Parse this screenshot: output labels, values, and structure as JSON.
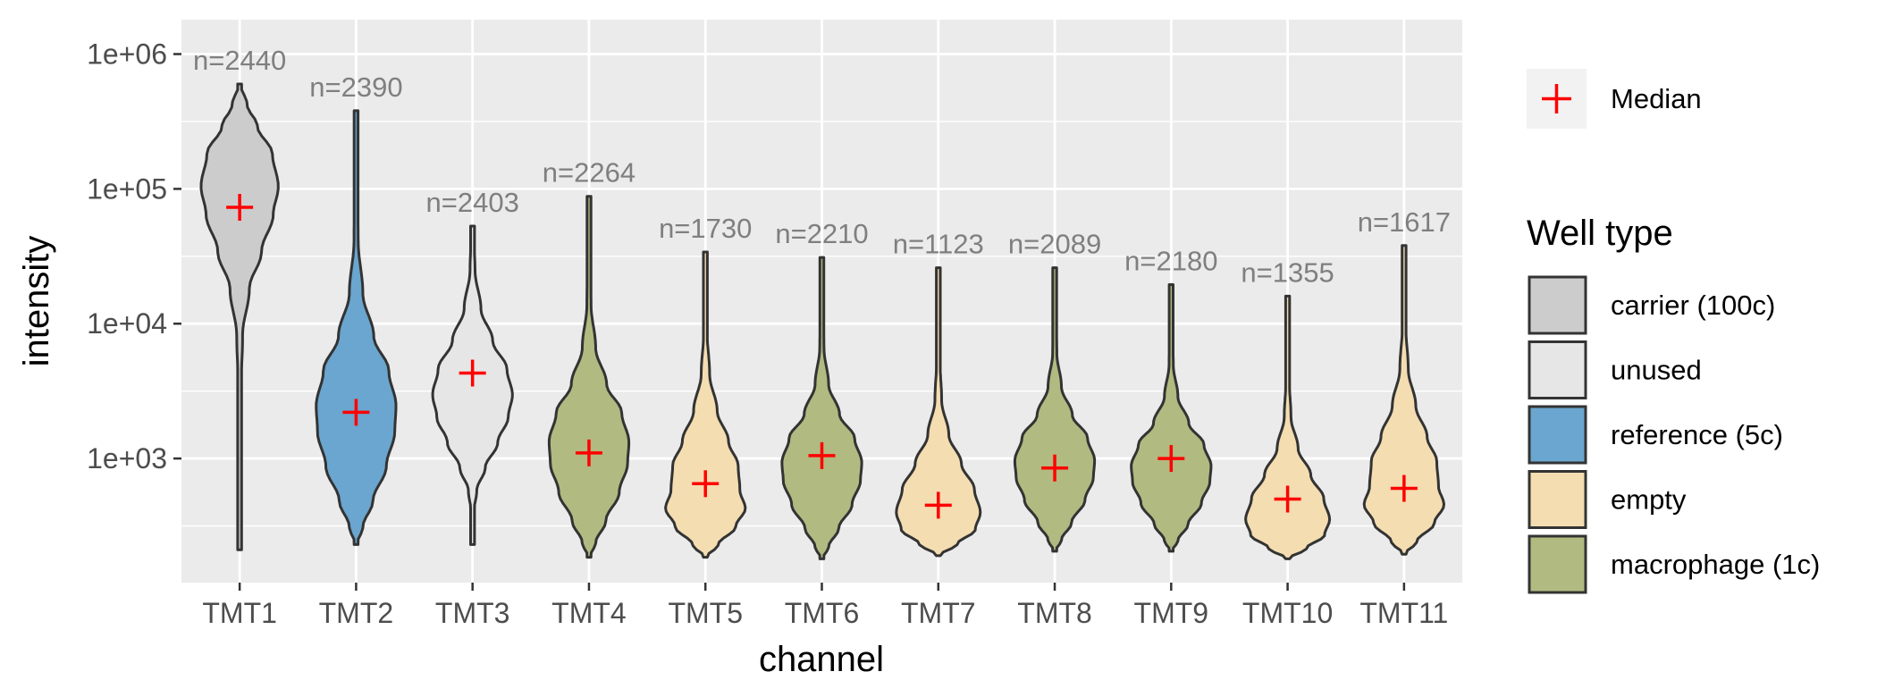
{
  "chart_data": {
    "type": "violin",
    "xlabel": "channel",
    "ylabel": "intensity",
    "y_scale": "log10",
    "ylim": [
      120,
      1800000
    ],
    "y_ticks": [
      {
        "value": 1000,
        "label": "1e+03"
      },
      {
        "value": 10000,
        "label": "1e+04"
      },
      {
        "value": 100000,
        "label": "1e+05"
      },
      {
        "value": 1000000,
        "label": "1e+06"
      }
    ],
    "grid": true,
    "legend_placement": "right",
    "median_legend": {
      "label": "Median",
      "color": "#ff0000"
    },
    "well_type_legend": {
      "title": "Well type",
      "entries": [
        {
          "label": "carrier (100c)",
          "color": "#cccccc"
        },
        {
          "label": "unused",
          "color": "#e6e6e6"
        },
        {
          "label": "reference (5c)",
          "color": "#6aa6cf"
        },
        {
          "label": "empty",
          "color": "#f4ddb1"
        },
        {
          "label": "macrophage (1c)",
          "color": "#b1ba80"
        }
      ]
    },
    "categories": [
      "TMT1",
      "TMT2",
      "TMT3",
      "TMT4",
      "TMT5",
      "TMT6",
      "TMT7",
      "TMT8",
      "TMT9",
      "TMT10",
      "TMT11"
    ],
    "series": [
      {
        "category": "TMT1",
        "well_type": "carrier (100c)",
        "n": "n=2440",
        "median": 73000,
        "min": 210,
        "max": 600000,
        "shape": "tall-top"
      },
      {
        "category": "TMT2",
        "well_type": "reference (5c)",
        "n": "n=2390",
        "median": 2200,
        "min": 230,
        "max": 380000,
        "shape": "mid"
      },
      {
        "category": "TMT3",
        "well_type": "unused",
        "n": "n=2403",
        "median": 4300,
        "min": 230,
        "max": 53000,
        "shape": "mid-tail"
      },
      {
        "category": "TMT4",
        "well_type": "macrophage (1c)",
        "n": "n=2264",
        "median": 1100,
        "min": 185,
        "max": 88000,
        "shape": "mid"
      },
      {
        "category": "TMT5",
        "well_type": "empty",
        "n": "n=1730",
        "median": 650,
        "min": 185,
        "max": 34000,
        "shape": "low"
      },
      {
        "category": "TMT6",
        "well_type": "macrophage (1c)",
        "n": "n=2210",
        "median": 1050,
        "min": 180,
        "max": 31000,
        "shape": "mid"
      },
      {
        "category": "TMT7",
        "well_type": "empty",
        "n": "n=1123",
        "median": 450,
        "min": 190,
        "max": 26000,
        "shape": "low-wide"
      },
      {
        "category": "TMT8",
        "well_type": "macrophage (1c)",
        "n": "n=2089",
        "median": 850,
        "min": 205,
        "max": 26000,
        "shape": "mid"
      },
      {
        "category": "TMT9",
        "well_type": "macrophage (1c)",
        "n": "n=2180",
        "median": 1000,
        "min": 205,
        "max": 19500,
        "shape": "mid"
      },
      {
        "category": "TMT10",
        "well_type": "empty",
        "n": "n=1355",
        "median": 500,
        "min": 180,
        "max": 16000,
        "shape": "low-wide"
      },
      {
        "category": "TMT11",
        "well_type": "empty",
        "n": "n=1617",
        "median": 600,
        "min": 195,
        "max": 38000,
        "shape": "low"
      }
    ]
  }
}
